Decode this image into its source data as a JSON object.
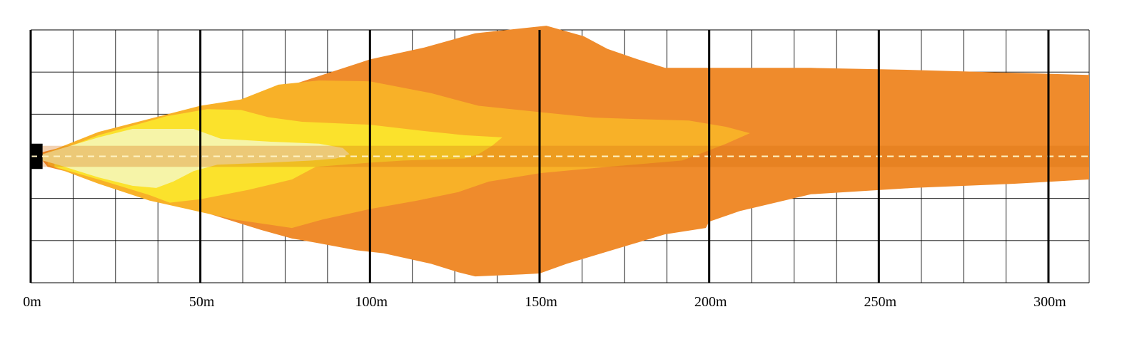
{
  "chart_data": {
    "type": "area",
    "title": "",
    "xlabel": "",
    "ylabel": "",
    "xlim": [
      0,
      312
    ],
    "ylim": [
      -3,
      3
    ],
    "x_ticks": [
      0,
      50,
      100,
      150,
      200,
      250,
      300
    ],
    "x_tick_labels": [
      "0m",
      "50m",
      "100m",
      "150m",
      "200m",
      "250m",
      "300m"
    ],
    "grid": true,
    "colors": {
      "outer": "#ef8b2c",
      "second": "#f8b128",
      "third": "#fbe22c",
      "inner": "#f6f4a8",
      "center_band": "#d86f10",
      "center_line": "#fff2c2",
      "grid_minor": "#000000",
      "grid_major": "#000000"
    },
    "series": [
      {
        "id": "outer",
        "points": [
          [
            3.5,
            0.1
          ],
          [
            26,
            0.56
          ],
          [
            50,
            1.06
          ],
          [
            79,
            1.75
          ],
          [
            100,
            2.3
          ],
          [
            116,
            2.58
          ],
          [
            131,
            2.92
          ],
          [
            152,
            3.1
          ],
          [
            163,
            2.85
          ],
          [
            170,
            2.55
          ],
          [
            179,
            2.3
          ],
          [
            187,
            2.1
          ],
          [
            200,
            2.1
          ],
          [
            230,
            2.1
          ],
          [
            260,
            2.05
          ],
          [
            290,
            1.98
          ],
          [
            312,
            1.93
          ],
          [
            312,
            -0.55
          ],
          [
            290,
            -0.65
          ],
          [
            260,
            -0.75
          ],
          [
            230,
            -0.9
          ],
          [
            209,
            -1.3
          ],
          [
            200,
            -1.55
          ],
          [
            199,
            -1.7
          ],
          [
            187,
            -1.85
          ],
          [
            158,
            -2.55
          ],
          [
            150,
            -2.78
          ],
          [
            145,
            -2.8
          ],
          [
            131,
            -2.85
          ],
          [
            126,
            -2.75
          ],
          [
            118,
            -2.55
          ],
          [
            104,
            -2.3
          ],
          [
            96,
            -2.23
          ],
          [
            84,
            -2.05
          ],
          [
            77,
            -1.95
          ],
          [
            68,
            -1.75
          ],
          [
            50,
            -1.3
          ],
          [
            35,
            -0.88
          ],
          [
            20,
            -0.55
          ],
          [
            5,
            -0.25
          ],
          [
            3.5,
            -0.1
          ]
        ]
      },
      {
        "id": "second",
        "points": [
          [
            5,
            0.1
          ],
          [
            20,
            0.58
          ],
          [
            50,
            1.2
          ],
          [
            62,
            1.35
          ],
          [
            73,
            1.7
          ],
          [
            85,
            1.8
          ],
          [
            100,
            1.78
          ],
          [
            118,
            1.5
          ],
          [
            132,
            1.2
          ],
          [
            150,
            1.05
          ],
          [
            166,
            0.92
          ],
          [
            180,
            0.88
          ],
          [
            194,
            0.85
          ],
          [
            205,
            0.7
          ],
          [
            212,
            0.55
          ],
          [
            205,
            0.3
          ],
          [
            197,
            0.05
          ],
          [
            192,
            -0.1
          ],
          [
            170,
            -0.25
          ],
          [
            150,
            -0.4
          ],
          [
            135,
            -0.6
          ],
          [
            126,
            -0.85
          ],
          [
            114,
            -1.05
          ],
          [
            100,
            -1.25
          ],
          [
            86,
            -1.5
          ],
          [
            77,
            -1.7
          ],
          [
            60,
            -1.5
          ],
          [
            50,
            -1.32
          ],
          [
            35,
            -1.05
          ],
          [
            20,
            -0.65
          ],
          [
            5,
            -0.2
          ]
        ]
      },
      {
        "id": "third",
        "points": [
          [
            7,
            0.1
          ],
          [
            20,
            0.5
          ],
          [
            40,
            0.95
          ],
          [
            52,
            1.12
          ],
          [
            62,
            1.1
          ],
          [
            70,
            0.93
          ],
          [
            80,
            0.82
          ],
          [
            100,
            0.75
          ],
          [
            116,
            0.6
          ],
          [
            128,
            0.5
          ],
          [
            139,
            0.45
          ],
          [
            136,
            0.25
          ],
          [
            132,
            0.05
          ],
          [
            128,
            -0.05
          ],
          [
            110,
            -0.1
          ],
          [
            100,
            -0.15
          ],
          [
            84,
            -0.25
          ],
          [
            77,
            -0.55
          ],
          [
            64,
            -0.8
          ],
          [
            50,
            -1.02
          ],
          [
            41,
            -1.1
          ],
          [
            35,
            -0.92
          ],
          [
            20,
            -0.55
          ],
          [
            7,
            -0.25
          ]
        ]
      },
      {
        "id": "inner",
        "points": [
          [
            3.5,
            0.05
          ],
          [
            20,
            0.45
          ],
          [
            30,
            0.65
          ],
          [
            48,
            0.65
          ],
          [
            56,
            0.42
          ],
          [
            70,
            0.35
          ],
          [
            85,
            0.3
          ],
          [
            92,
            0.2
          ],
          [
            94,
            0.05
          ],
          [
            90,
            -0.05
          ],
          [
            83,
            -0.1
          ],
          [
            70,
            -0.15
          ],
          [
            55,
            -0.2
          ],
          [
            48,
            -0.35
          ],
          [
            42,
            -0.6
          ],
          [
            37,
            -0.75
          ],
          [
            30,
            -0.7
          ],
          [
            20,
            -0.5
          ],
          [
            8,
            -0.2
          ],
          [
            3.5,
            -0.1
          ]
        ]
      }
    ],
    "center_band": {
      "x_from": 3.5,
      "x_to": 312,
      "y_from": -0.25,
      "y_to": 0.25
    },
    "start_marker": {
      "x_from": 0,
      "x_to": 3.5,
      "y_from": -0.3,
      "y_to": 0.3
    }
  }
}
